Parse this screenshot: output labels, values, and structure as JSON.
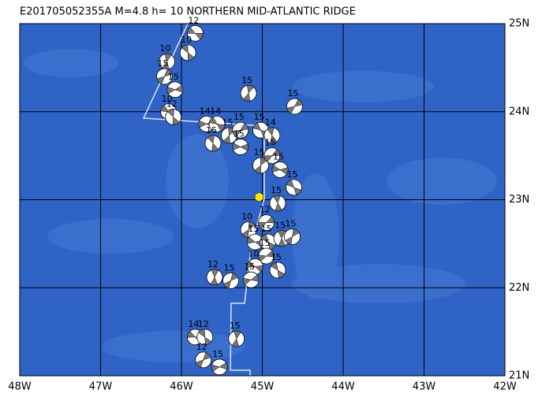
{
  "map": {
    "title": "E201705052355A M=4.8 h= 10 NORTHERN MID-ATLANTIC RIDGE",
    "xlim": [
      -48,
      -42
    ],
    "ylim": [
      21,
      25
    ],
    "xticks": [
      {
        "value": -48,
        "label": "48W"
      },
      {
        "value": -47,
        "label": "47W"
      },
      {
        "value": -46,
        "label": "46W"
      },
      {
        "value": -45,
        "label": "45W"
      },
      {
        "value": -44,
        "label": "44W"
      },
      {
        "value": -43,
        "label": "43W"
      },
      {
        "value": -42,
        "label": "42W"
      }
    ],
    "yticks": [
      {
        "value": 25,
        "label": "25N"
      },
      {
        "value": 24,
        "label": "24N"
      },
      {
        "value": 23,
        "label": "23N"
      },
      {
        "value": 22,
        "label": "22N"
      },
      {
        "value": 21,
        "label": "21N"
      }
    ],
    "epicenter": {
      "lon": -45.04,
      "lat": 23.03,
      "color": "#ffe800"
    },
    "events": [
      {
        "lon": -45.83,
        "lat": 24.89,
        "depth": "12"
      },
      {
        "lon": -45.92,
        "lat": 24.67,
        "depth": "10"
      },
      {
        "lon": -46.18,
        "lat": 24.57,
        "depth": "10"
      },
      {
        "lon": -46.21,
        "lat": 24.4,
        "depth": "15"
      },
      {
        "lon": -46.08,
        "lat": 24.25,
        "depth": "15"
      },
      {
        "lon": -46.16,
        "lat": 24.0,
        "depth": "10"
      },
      {
        "lon": -46.1,
        "lat": 23.94,
        "depth": "12"
      },
      {
        "lon": -45.17,
        "lat": 24.21,
        "depth": "15"
      },
      {
        "lon": -44.6,
        "lat": 24.06,
        "depth": "15"
      },
      {
        "lon": -45.69,
        "lat": 23.86,
        "depth": "14"
      },
      {
        "lon": -45.56,
        "lat": 23.86,
        "depth": "14"
      },
      {
        "lon": -45.61,
        "lat": 23.64,
        "depth": "15"
      },
      {
        "lon": -45.41,
        "lat": 23.73,
        "depth": "15"
      },
      {
        "lon": -45.27,
        "lat": 23.79,
        "depth": "15"
      },
      {
        "lon": -45.27,
        "lat": 23.6,
        "depth": "15"
      },
      {
        "lon": -45.02,
        "lat": 23.79,
        "depth": "15"
      },
      {
        "lon": -44.88,
        "lat": 23.73,
        "depth": "14"
      },
      {
        "lon": -45.02,
        "lat": 23.39,
        "depth": "15"
      },
      {
        "lon": -44.88,
        "lat": 23.5,
        "depth": "15"
      },
      {
        "lon": -44.78,
        "lat": 23.34,
        "depth": "15"
      },
      {
        "lon": -44.61,
        "lat": 23.14,
        "depth": "15"
      },
      {
        "lon": -44.81,
        "lat": 22.96,
        "depth": "15"
      },
      {
        "lon": -45.17,
        "lat": 22.66,
        "depth": "10"
      },
      {
        "lon": -44.95,
        "lat": 22.74,
        "depth": "12"
      },
      {
        "lon": -45.09,
        "lat": 22.52,
        "depth": "15"
      },
      {
        "lon": -44.93,
        "lat": 22.52,
        "depth": "15"
      },
      {
        "lon": -44.76,
        "lat": 22.56,
        "depth": "15"
      },
      {
        "lon": -44.63,
        "lat": 22.58,
        "depth": "15"
      },
      {
        "lon": -44.95,
        "lat": 22.36,
        "depth": "15"
      },
      {
        "lon": -45.09,
        "lat": 22.24,
        "depth": "10"
      },
      {
        "lon": -44.81,
        "lat": 22.2,
        "depth": "15"
      },
      {
        "lon": -45.59,
        "lat": 22.12,
        "depth": "12"
      },
      {
        "lon": -45.39,
        "lat": 22.08,
        "depth": "15"
      },
      {
        "lon": -45.14,
        "lat": 22.09,
        "depth": "15"
      },
      {
        "lon": -45.83,
        "lat": 21.44,
        "depth": "14"
      },
      {
        "lon": -45.71,
        "lat": 21.44,
        "depth": "12"
      },
      {
        "lon": -45.32,
        "lat": 21.42,
        "depth": "15"
      },
      {
        "lon": -45.73,
        "lat": 21.18,
        "depth": "12"
      },
      {
        "lon": -45.53,
        "lat": 21.1,
        "depth": "15"
      }
    ]
  }
}
